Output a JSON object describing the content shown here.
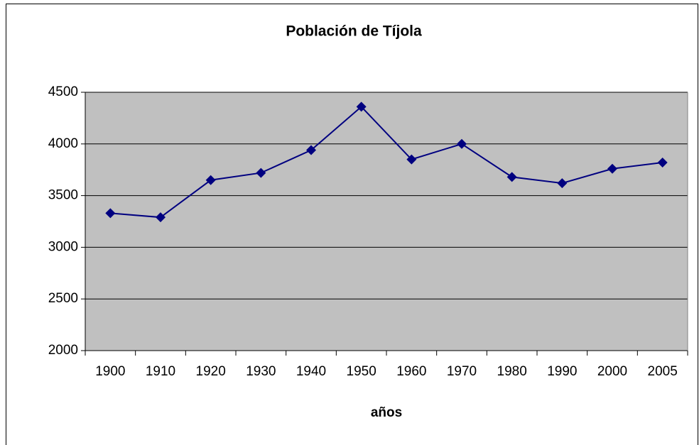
{
  "chart_data": {
    "type": "line",
    "title": "Población de Tíjola",
    "x_label": "años",
    "categories": [
      "1900",
      "1910",
      "1920",
      "1930",
      "1940",
      "1950",
      "1960",
      "1970",
      "1980",
      "1990",
      "2000",
      "2005"
    ],
    "series": [
      {
        "color": "#000080",
        "values": [
          3330,
          3290,
          3650,
          3720,
          3940,
          4360,
          3850,
          4000,
          3680,
          3620,
          3760,
          3820
        ]
      }
    ],
    "ylim": [
      2000,
      4500
    ],
    "yticks": [
      2000,
      2500,
      3000,
      3500,
      4000,
      4500
    ],
    "grid": true,
    "plot_background": "#c0c0c0"
  }
}
